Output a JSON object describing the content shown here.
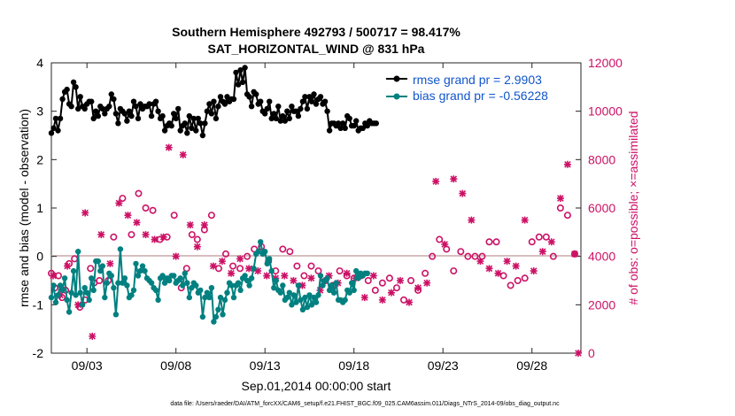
{
  "chart_data": {
    "type": "line",
    "title_line1": "Southern Hemisphere 492793 / 500717 = 98.417%",
    "title_line2": "SAT_HORIZONTAL_WIND @ 831 hPa",
    "xlabel": "Sep.01,2014 00:00:00 start",
    "ylabel": "rmse and bias (model - observation)",
    "ylabel_right": "# of obs: o=possible; ×=assimilated",
    "footer": "data file: /Users/raeder/DAI/ATM_forcXX/CAM6_setup/f.e21.FHIST_BGC.f09_025.CAM6assim.011/Diags_NTrS_2014-09/obs_diag_output.nc",
    "xlim": [
      1.0,
      30.75
    ],
    "ylim": [
      -2,
      4
    ],
    "ylim_right": [
      0,
      12000
    ],
    "x_tick_values": [
      3,
      8,
      13,
      18,
      23,
      28
    ],
    "x_tick_labels": [
      "09/03",
      "09/08",
      "09/13",
      "09/18",
      "09/23",
      "09/28"
    ],
    "y_ticks": [
      -2,
      -1,
      0,
      1,
      2,
      3,
      4
    ],
    "y_ticks_right": [
      0,
      2000,
      4000,
      6000,
      8000,
      10000,
      12000
    ],
    "legend": [
      "rmse grand pr = 2.9903",
      "bias grand pr = -0.56228"
    ],
    "series": [
      {
        "name": "rmse",
        "color": "#000000",
        "x_start": 1.0,
        "x_step": 0.125,
        "values": [
          2.55,
          2.65,
          2.85,
          2.6,
          2.85,
          3.25,
          3.4,
          3.45,
          3.15,
          3.1,
          3.6,
          3.5,
          3.05,
          3.3,
          3.1,
          3.05,
          3.15,
          3.2,
          3.2,
          2.85,
          3.0,
          2.9,
          3.1,
          3.05,
          2.95,
          3.05,
          3.1,
          3.35,
          3.25,
          2.95,
          2.75,
          3.05,
          3.0,
          2.95,
          2.8,
          3.0,
          2.9,
          3.2,
          3.1,
          2.85,
          3.15,
          3.05,
          3.1,
          3.1,
          3.15,
          2.9,
          3.15,
          3.2,
          3.0,
          2.85,
          2.9,
          2.6,
          2.7,
          2.75,
          2.7,
          2.95,
          2.85,
          3.05,
          2.6,
          2.7,
          2.75,
          2.55,
          2.9,
          2.65,
          2.85,
          2.6,
          2.85,
          2.75,
          2.5,
          2.75,
          3.0,
          3.15,
          2.95,
          3.2,
          2.85,
          3.1,
          3.3,
          3.2,
          3.15,
          3.3,
          3.2,
          3.25,
          3.25,
          3.8,
          3.55,
          3.85,
          3.6,
          3.9,
          3.35,
          3.3,
          3.1,
          3.4,
          3.35,
          3.15,
          3.2,
          3.0,
          2.95,
          3.05,
          3.2,
          2.85,
          2.95,
          2.85,
          3.1,
          2.8,
          2.9,
          2.8,
          3.0,
          2.85,
          3.1,
          3.0,
          3.0,
          2.9,
          3.05,
          3.2,
          3.3,
          3.05,
          3.3,
          3.2,
          3.35,
          3.15,
          3.25,
          3.3,
          3.15,
          3.2,
          3.0,
          2.6,
          2.75,
          2.75,
          2.7,
          2.75,
          2.65,
          2.75,
          2.65,
          2.9,
          2.85,
          2.7,
          2.7,
          2.8,
          2.6,
          2.65,
          2.65,
          2.75,
          2.7,
          2.8,
          2.75,
          2.75,
          2.75
        ]
      },
      {
        "name": "bias",
        "color": "#008080",
        "x_start": 1.0,
        "x_step": 0.125,
        "values": [
          -0.85,
          -0.6,
          -0.95,
          -0.8,
          -0.6,
          -0.7,
          -0.45,
          -0.9,
          -1.15,
          -0.75,
          -0.3,
          -0.8,
          0.1,
          -0.75,
          -1.0,
          -0.65,
          -0.75,
          -0.9,
          -0.45,
          -0.7,
          -0.1,
          -0.1,
          -0.3,
          -0.2,
          -0.85,
          -0.55,
          -0.35,
          -0.4,
          -0.65,
          -1.2,
          -0.55,
          0.15,
          -0.55,
          -0.45,
          -0.6,
          -0.85,
          -0.8,
          -0.7,
          -0.15,
          -0.4,
          -0.3,
          -0.2,
          -0.3,
          -0.45,
          -0.5,
          -0.55,
          -0.65,
          -0.7,
          -0.9,
          -0.45,
          -0.4,
          -0.55,
          -0.45,
          -0.5,
          -0.4,
          -0.4,
          -0.55,
          -0.5,
          -0.45,
          -0.6,
          -0.35,
          -0.55,
          -0.85,
          -0.65,
          -0.55,
          -0.6,
          -0.75,
          -0.7,
          -1.25,
          -0.85,
          -0.75,
          -0.85,
          -0.65,
          -1.35,
          -1.25,
          -1.1,
          -0.85,
          -1.2,
          -0.9,
          -0.75,
          -0.55,
          -0.6,
          -0.85,
          -0.6,
          -0.55,
          -0.7,
          -0.45,
          -0.4,
          -0.5,
          -0.6,
          -0.45,
          -0.25,
          0.05,
          0.1,
          0.3,
          0.05,
          0.1,
          -0.15,
          -0.05,
          -0.3,
          -0.65,
          -0.5,
          -0.7,
          -0.75,
          -0.6,
          -0.9,
          -0.85,
          -0.75,
          -1.0,
          -0.8,
          -0.95,
          -0.6,
          -0.9,
          -1.1,
          -0.85,
          -1.05,
          -0.8,
          -1.0,
          -0.85,
          -0.95,
          -0.8,
          -0.4,
          -0.6,
          -0.5,
          -0.45,
          -0.7,
          -0.6,
          -0.75,
          -0.55,
          -0.9,
          -0.9,
          -0.95,
          -0.9,
          -0.7,
          -0.75,
          -0.55,
          -0.7,
          -0.3,
          -0.45,
          -0.35,
          -0.4,
          -0.35,
          -0.35
        ]
      },
      {
        "name": "obs possible",
        "color": "#cc1166",
        "axis": "right",
        "points": [
          [
            1.0,
            3300
          ],
          [
            1.2,
            2700
          ],
          [
            1.4,
            3200
          ],
          [
            1.6,
            2300
          ],
          [
            1.8,
            2600
          ],
          [
            2.0,
            3700
          ],
          [
            2.3,
            3900
          ],
          [
            2.6,
            1900
          ],
          [
            2.9,
            2200
          ],
          [
            3.2,
            3500
          ],
          [
            3.4,
            2900
          ],
          [
            3.7,
            3000
          ],
          [
            4.2,
            3000
          ],
          [
            4.5,
            4800
          ],
          [
            5.0,
            6400
          ],
          [
            5.5,
            4900
          ],
          [
            5.9,
            6600
          ],
          [
            6.3,
            6000
          ],
          [
            6.7,
            5900
          ],
          [
            7.1,
            4700
          ],
          [
            7.5,
            4800
          ],
          [
            7.9,
            5700
          ],
          [
            8.3,
            2700
          ],
          [
            8.6,
            3500
          ],
          [
            8.9,
            4900
          ],
          [
            9.2,
            4700
          ],
          [
            9.6,
            5100
          ],
          [
            10.0,
            5700
          ],
          [
            10.4,
            3500
          ],
          [
            10.8,
            4100
          ],
          [
            11.2,
            3600
          ],
          [
            11.6,
            3500
          ],
          [
            12.0,
            4000
          ],
          [
            12.4,
            4300
          ],
          [
            12.8,
            4400
          ],
          [
            13.2,
            3800
          ],
          [
            13.6,
            3400
          ],
          [
            14.0,
            4300
          ],
          [
            14.4,
            4200
          ],
          [
            14.8,
            3600
          ],
          [
            15.2,
            3200
          ],
          [
            15.6,
            3600
          ],
          [
            16.0,
            3400
          ],
          [
            16.4,
            3000
          ],
          [
            16.8,
            2800
          ],
          [
            17.2,
            3400
          ],
          [
            17.6,
            3200
          ],
          [
            18.0,
            3100
          ],
          [
            18.4,
            3200
          ],
          [
            18.8,
            3000
          ],
          [
            19.2,
            2600
          ],
          [
            19.6,
            2900
          ],
          [
            20.0,
            3100
          ],
          [
            20.4,
            2700
          ],
          [
            20.8,
            2200
          ],
          [
            21.2,
            3000
          ],
          [
            21.6,
            2600
          ],
          [
            22.0,
            3300
          ],
          [
            22.4,
            4000
          ],
          [
            22.8,
            4700
          ],
          [
            23.2,
            4300
          ],
          [
            23.6,
            3400
          ],
          [
            24.0,
            4200
          ],
          [
            24.4,
            4000
          ],
          [
            24.8,
            4000
          ],
          [
            25.2,
            4000
          ],
          [
            25.6,
            4600
          ],
          [
            26.0,
            4600
          ],
          [
            26.4,
            3200
          ],
          [
            26.8,
            2800
          ],
          [
            27.2,
            3000
          ],
          [
            27.6,
            3100
          ],
          [
            28.0,
            4600
          ],
          [
            28.4,
            4800
          ],
          [
            28.8,
            4800
          ],
          [
            29.2,
            4000
          ],
          [
            29.6,
            6000
          ],
          [
            30.0,
            5700
          ],
          [
            30.4,
            4100
          ]
        ]
      },
      {
        "name": "obs assimilated",
        "color": "#cc1166",
        "axis": "right",
        "points": [
          [
            1.1,
            3200
          ],
          [
            1.5,
            2400
          ],
          [
            1.9,
            3600
          ],
          [
            2.5,
            2000
          ],
          [
            2.9,
            5800
          ],
          [
            3.3,
            700
          ],
          [
            3.8,
            4900
          ],
          [
            4.3,
            3700
          ],
          [
            4.8,
            6200
          ],
          [
            5.3,
            5700
          ],
          [
            5.8,
            5400
          ],
          [
            6.3,
            4900
          ],
          [
            6.8,
            4700
          ],
          [
            7.3,
            4800
          ],
          [
            7.6,
            8500
          ],
          [
            8.0,
            4000
          ],
          [
            8.4,
            8200
          ],
          [
            8.8,
            5300
          ],
          [
            9.2,
            4400
          ],
          [
            9.6,
            5300
          ],
          [
            10.1,
            3600
          ],
          [
            10.6,
            3800
          ],
          [
            11.1,
            3300
          ],
          [
            11.6,
            3900
          ],
          [
            12.1,
            3500
          ],
          [
            12.6,
            3400
          ],
          [
            13.1,
            3200
          ],
          [
            13.6,
            3100
          ],
          [
            14.1,
            3200
          ],
          [
            14.6,
            3000
          ],
          [
            15.1,
            2800
          ],
          [
            15.6,
            3100
          ],
          [
            16.1,
            2600
          ],
          [
            16.6,
            3200
          ],
          [
            17.1,
            2900
          ],
          [
            17.6,
            3300
          ],
          [
            18.1,
            3100
          ],
          [
            18.6,
            2300
          ],
          [
            19.1,
            3200
          ],
          [
            19.6,
            2200
          ],
          [
            20.1,
            2500
          ],
          [
            20.6,
            3000
          ],
          [
            21.1,
            2100
          ],
          [
            21.6,
            2700
          ],
          [
            22.1,
            2900
          ],
          [
            22.6,
            7100
          ],
          [
            23.1,
            4500
          ],
          [
            23.6,
            7200
          ],
          [
            24.1,
            6600
          ],
          [
            24.6,
            5500
          ],
          [
            25.1,
            3800
          ],
          [
            25.6,
            3500
          ],
          [
            26.1,
            3300
          ],
          [
            26.6,
            3800
          ],
          [
            27.1,
            3600
          ],
          [
            27.6,
            5500
          ],
          [
            28.1,
            3400
          ],
          [
            28.6,
            4200
          ],
          [
            29.1,
            4600
          ],
          [
            29.6,
            6400
          ],
          [
            30.0,
            7800
          ],
          [
            30.4,
            4100
          ],
          [
            30.6,
            0
          ]
        ]
      }
    ]
  }
}
